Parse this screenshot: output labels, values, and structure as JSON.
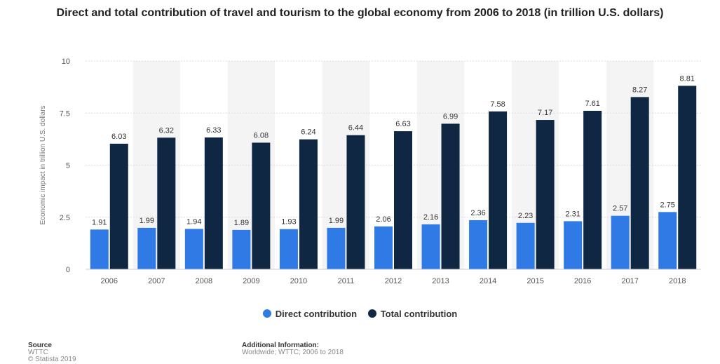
{
  "chart_data": {
    "type": "bar",
    "title": "Direct and total contribution of travel and tourism to the global economy from 2006 to 2018 (in trillion U.S. dollars)",
    "xlabel": "",
    "ylabel": "Economic impact in trillion U.S. dollars",
    "ylim": [
      0,
      10
    ],
    "yticks": [
      0,
      2.5,
      5,
      7.5,
      10
    ],
    "yticklabels": [
      "0",
      "2.5",
      "5",
      "7.5",
      "10"
    ],
    "grid": true,
    "legend_position": "bottom",
    "categories": [
      "2006",
      "2007",
      "2008",
      "2009",
      "2010",
      "2011",
      "2012",
      "2013",
      "2014",
      "2015",
      "2016",
      "2017",
      "2018"
    ],
    "series": [
      {
        "name": "Direct contribution",
        "color": "#2f7ae5",
        "values": [
          1.91,
          1.99,
          1.94,
          1.89,
          1.93,
          1.99,
          2.06,
          2.16,
          2.36,
          2.23,
          2.31,
          2.57,
          2.75
        ],
        "labels": [
          "1.91",
          "1.99",
          "1.94",
          "1.89",
          "1.93",
          "1.99",
          "2.06",
          "2.16",
          "2.36",
          "2.23",
          "2.31",
          "2.57",
          "2.75"
        ]
      },
      {
        "name": "Total contribution",
        "color": "#0f2742",
        "values": [
          6.03,
          6.32,
          6.33,
          6.08,
          6.24,
          6.44,
          6.63,
          6.99,
          7.58,
          7.17,
          7.61,
          8.27,
          8.81
        ],
        "labels": [
          "6.03",
          "6.32",
          "6.33",
          "6.08",
          "6.24",
          "6.44",
          "6.63",
          "6.99",
          "7.58",
          "7.17",
          "7.61",
          "8.27",
          "8.81"
        ]
      }
    ]
  },
  "footer": {
    "source_heading": "Source",
    "source_lines": [
      "WTTC",
      "© Statista 2019"
    ],
    "info_heading": "Additional Information:",
    "info_lines": [
      "Worldwide; WTTC; 2006 to 2018"
    ]
  },
  "colors": {
    "alt_band": "#f4f4f4",
    "grid": "#dddddd",
    "axis": "#cccccc"
  }
}
